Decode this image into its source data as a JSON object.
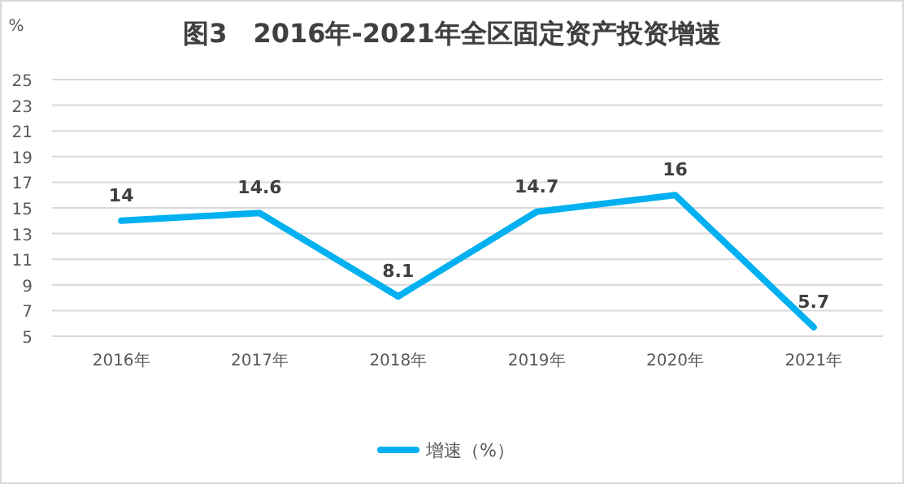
{
  "chart_data": {
    "type": "line",
    "title": "图3　2016年-2021年全区固定资产投资增速",
    "ylabel": "%",
    "categories": [
      "2016年",
      "2017年",
      "2018年",
      "2019年",
      "2020年",
      "2021年"
    ],
    "series": [
      {
        "name": "增速（%）",
        "color": "#00b0f0",
        "values": [
          14,
          14.6,
          8.1,
          14.7,
          16,
          5.7
        ]
      }
    ],
    "ylim": [
      5,
      25
    ],
    "yticks": [
      5,
      7,
      9,
      11,
      13,
      15,
      17,
      19,
      21,
      23,
      25
    ],
    "grid": "y",
    "legend": "bottom",
    "data_labels": true,
    "marker": "none",
    "line_style": "solid"
  }
}
